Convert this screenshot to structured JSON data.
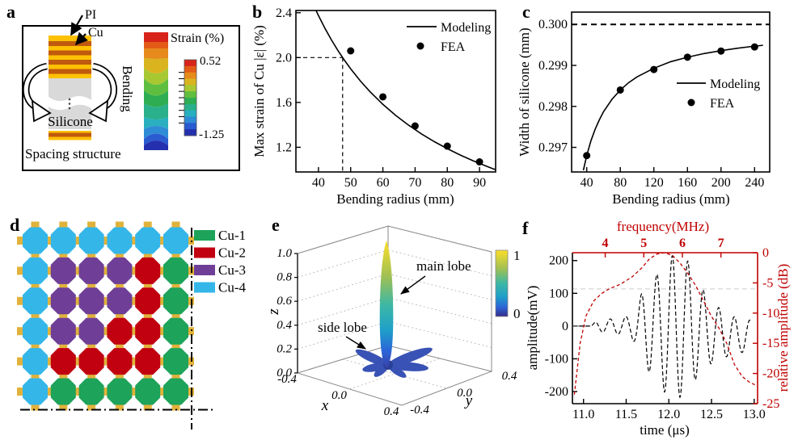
{
  "panel_labels": {
    "a": "a",
    "b": "b",
    "c": "c",
    "d": "d",
    "e": "e",
    "f": "f"
  },
  "panels": {
    "a": {
      "pi_label": "PI",
      "cu_label": "Cu",
      "bending_label": "Bending",
      "silicone_label": "Silicone",
      "caption": "Spacing structure",
      "colorbar_title": "Strain (%)",
      "colorbar_max": "0.52",
      "colorbar_min": "-1.25",
      "colors": {
        "pi_yellow": "#FFC103",
        "cu_orange": "#C05A0E",
        "silicone_gray": "#D9D9D9"
      }
    },
    "d": {
      "legend": [
        {
          "label": "Cu-1",
          "color": "#1EA35A"
        },
        {
          "label": "Cu-2",
          "color": "#C10010"
        },
        {
          "label": "Cu-3",
          "color": "#6F3F98"
        },
        {
          "label": "Cu-4",
          "color": "#35B6E9"
        }
      ],
      "connector_color": "#E1B23B",
      "grid": [
        [
          4,
          4,
          4,
          4,
          4,
          4
        ],
        [
          4,
          3,
          3,
          3,
          2,
          1
        ],
        [
          4,
          3,
          3,
          3,
          2,
          1
        ],
        [
          4,
          3,
          3,
          2,
          2,
          1
        ],
        [
          4,
          2,
          2,
          2,
          2,
          1
        ],
        [
          4,
          1,
          1,
          1,
          1,
          1
        ]
      ]
    }
  },
  "chart_data": [
    {
      "id": "b",
      "type": "line+scatter",
      "xlabel": "Bending radius (mm)",
      "ylabel": "Max strain of Cu |ε| (%)",
      "xlim": [
        33,
        95
      ],
      "ylim": [
        0.98,
        2.42
      ],
      "xticks": [
        40,
        50,
        60,
        70,
        80,
        90
      ],
      "xtick_labels": [
        "40",
        "50",
        "60",
        "70",
        "80",
        "90"
      ],
      "yticks": [
        1.2,
        1.6,
        2.0,
        2.4
      ],
      "ytick_labels": [
        "1.2",
        "1.6",
        "2.0",
        "2.4"
      ],
      "series": [
        {
          "name": "Modeling",
          "type": "line",
          "x": [
            39.3,
            40,
            42,
            44,
            46,
            48,
            50,
            53,
            56,
            60,
            64,
            68,
            72,
            76,
            80,
            84,
            88,
            92,
            95
          ],
          "y": [
            2.417,
            2.375,
            2.262,
            2.159,
            2.065,
            1.979,
            1.9,
            1.792,
            1.696,
            1.583,
            1.484,
            1.397,
            1.319,
            1.25,
            1.188,
            1.131,
            1.08,
            1.033,
            1.0
          ]
        },
        {
          "name": "FEA",
          "type": "scatter",
          "x": [
            50,
            60,
            70,
            80,
            90
          ],
          "y": [
            2.06,
            1.65,
            1.39,
            1.21,
            1.07
          ]
        }
      ],
      "guides": {
        "h": 2.0,
        "v": 47.5
      },
      "legend": [
        "Modeling",
        "FEA"
      ],
      "legend_pos": "top-right",
      "grid": false
    },
    {
      "id": "c",
      "type": "line+scatter",
      "xlabel": "Bending radius (mm)",
      "ylabel": "Width of silicone (mm)",
      "xlim": [
        22,
        258
      ],
      "ylim": [
        0.2964,
        0.3003
      ],
      "xticks": [
        40,
        80,
        120,
        160,
        200,
        240
      ],
      "xtick_labels": [
        "40",
        "80",
        "120",
        "160",
        "200",
        "240"
      ],
      "yticks": [
        0.297,
        0.298,
        0.299,
        0.3
      ],
      "ytick_labels": [
        "0.297",
        "0.298",
        "0.299",
        "0.300"
      ],
      "series": [
        {
          "name": "Modeling",
          "type": "line",
          "x": [
            36,
            40,
            45,
            50,
            55,
            60,
            70,
            80,
            90,
            100,
            120,
            140,
            160,
            180,
            200,
            220,
            240,
            250
          ],
          "y": [
            0.29644,
            0.2968,
            0.29716,
            0.29744,
            0.29767,
            0.29787,
            0.29817,
            0.2984,
            0.29858,
            0.29872,
            0.29893,
            0.29909,
            0.2992,
            0.29929,
            0.29936,
            0.29942,
            0.29947,
            0.29949
          ]
        },
        {
          "name": "FEA",
          "type": "scatter",
          "x": [
            40,
            80,
            120,
            160,
            200,
            240
          ],
          "y": [
            0.2968,
            0.2984,
            0.2989,
            0.2992,
            0.29935,
            0.29945
          ]
        }
      ],
      "target_line": 0.3,
      "legend": [
        "Modeling",
        "FEA"
      ],
      "legend_pos": "middle-right",
      "grid": false
    },
    {
      "id": "e",
      "type": "3d-beam",
      "xlabel": "x",
      "ylabel": "y",
      "zlabel": "z",
      "xtick_labels": [
        "-0.4",
        "0.0",
        "0.4"
      ],
      "ytick_labels": [
        "-0.4",
        "0.0",
        "0.4"
      ],
      "ztick_labels": [
        "0.0",
        "0.2",
        "0.4",
        "0.6",
        "0.8",
        "1.0"
      ],
      "xlim": [
        -0.4,
        0.4
      ],
      "ylim": [
        -0.4,
        0.4
      ],
      "zlim": [
        0,
        1
      ],
      "colorbar": {
        "max": "1",
        "min": "0"
      },
      "annotations": {
        "main": "main lobe",
        "side": "side lobe"
      },
      "lobes": {
        "main": {
          "direction": "+z",
          "amplitude": 1.0
        },
        "side": {
          "count": 6,
          "amplitude": 0.15
        }
      }
    },
    {
      "id": "f",
      "type": "dual-axis",
      "xlabel_bottom": "time (μs)",
      "ylabel_left": "amplitude(mV)",
      "xlabel_top": "frequency(MHz)",
      "ylabel_right": "relative amplitude (dB)",
      "x_time": [
        10.87,
        13.04
      ],
      "y_mv": [
        -237,
        224
      ],
      "x_mhz": [
        3.15,
        7.95
      ],
      "y_db": [
        -25,
        0
      ],
      "time_ticks": [
        11.0,
        11.5,
        12.0,
        12.5,
        13.0
      ],
      "time_tick_labels": [
        "11.0",
        "11.5",
        "12.0",
        "12.5",
        "13.0"
      ],
      "mv_ticks": [
        -200,
        -100,
        0,
        100,
        200
      ],
      "mv_tick_labels": [
        "-200",
        "-100",
        "0",
        "100",
        "200"
      ],
      "mhz_ticks": [
        4,
        5,
        6,
        7
      ],
      "mhz_tick_labels": [
        "4",
        "5",
        "6",
        "7"
      ],
      "db_ticks": [
        0,
        -5,
        -10,
        -15,
        -20,
        -25
      ],
      "db_tick_labels": [
        "0",
        "-5",
        "-10",
        "-15",
        "-20",
        "-25"
      ],
      "waveform": {
        "carrier_mhz": 5.5,
        "peak_time": 12.04,
        "envelope": [
          [
            11.08,
            0
          ],
          [
            11.15,
            15
          ],
          [
            11.3,
            22
          ],
          [
            11.45,
            25
          ],
          [
            11.55,
            35
          ],
          [
            11.62,
            55
          ],
          [
            11.68,
            100
          ],
          [
            11.75,
            135
          ],
          [
            11.85,
            155
          ],
          [
            11.95,
            200
          ],
          [
            12.05,
            218
          ],
          [
            12.15,
            215
          ],
          [
            12.25,
            195
          ],
          [
            12.35,
            140
          ],
          [
            12.45,
            105
          ],
          [
            12.55,
            85
          ],
          [
            12.65,
            70
          ],
          [
            12.75,
            58
          ],
          [
            12.85,
            52
          ],
          [
            12.95,
            48
          ]
        ],
        "dc_offset": [
          [
            11.0,
            0
          ],
          [
            12.3,
            -2
          ],
          [
            12.5,
            -20
          ],
          [
            12.7,
            -28
          ],
          [
            12.97,
            -30
          ]
        ]
      },
      "spectrum": [
        [
          3.2,
          -23.5
        ],
        [
          3.35,
          -15
        ],
        [
          3.5,
          -10.5
        ],
        [
          3.7,
          -8
        ],
        [
          3.9,
          -6.8
        ],
        [
          4.1,
          -6
        ],
        [
          4.4,
          -5.2
        ],
        [
          4.7,
          -4
        ],
        [
          4.95,
          -2.5
        ],
        [
          5.15,
          -1
        ],
        [
          5.35,
          -0.2
        ],
        [
          5.55,
          0
        ],
        [
          5.75,
          -0.5
        ],
        [
          5.95,
          -1.8
        ],
        [
          6.15,
          -3.5
        ],
        [
          6.35,
          -5.5
        ],
        [
          6.55,
          -8
        ],
        [
          6.75,
          -10.5
        ],
        [
          6.95,
          -12.5
        ],
        [
          7.15,
          -15
        ],
        [
          7.35,
          -18.5
        ],
        [
          7.55,
          -20.5
        ],
        [
          7.75,
          -21.5
        ],
        [
          7.93,
          -22
        ]
      ],
      "reference_line_db": -6,
      "colors": {
        "waveform": "#000000",
        "spectrum": "#C00000"
      }
    }
  ]
}
